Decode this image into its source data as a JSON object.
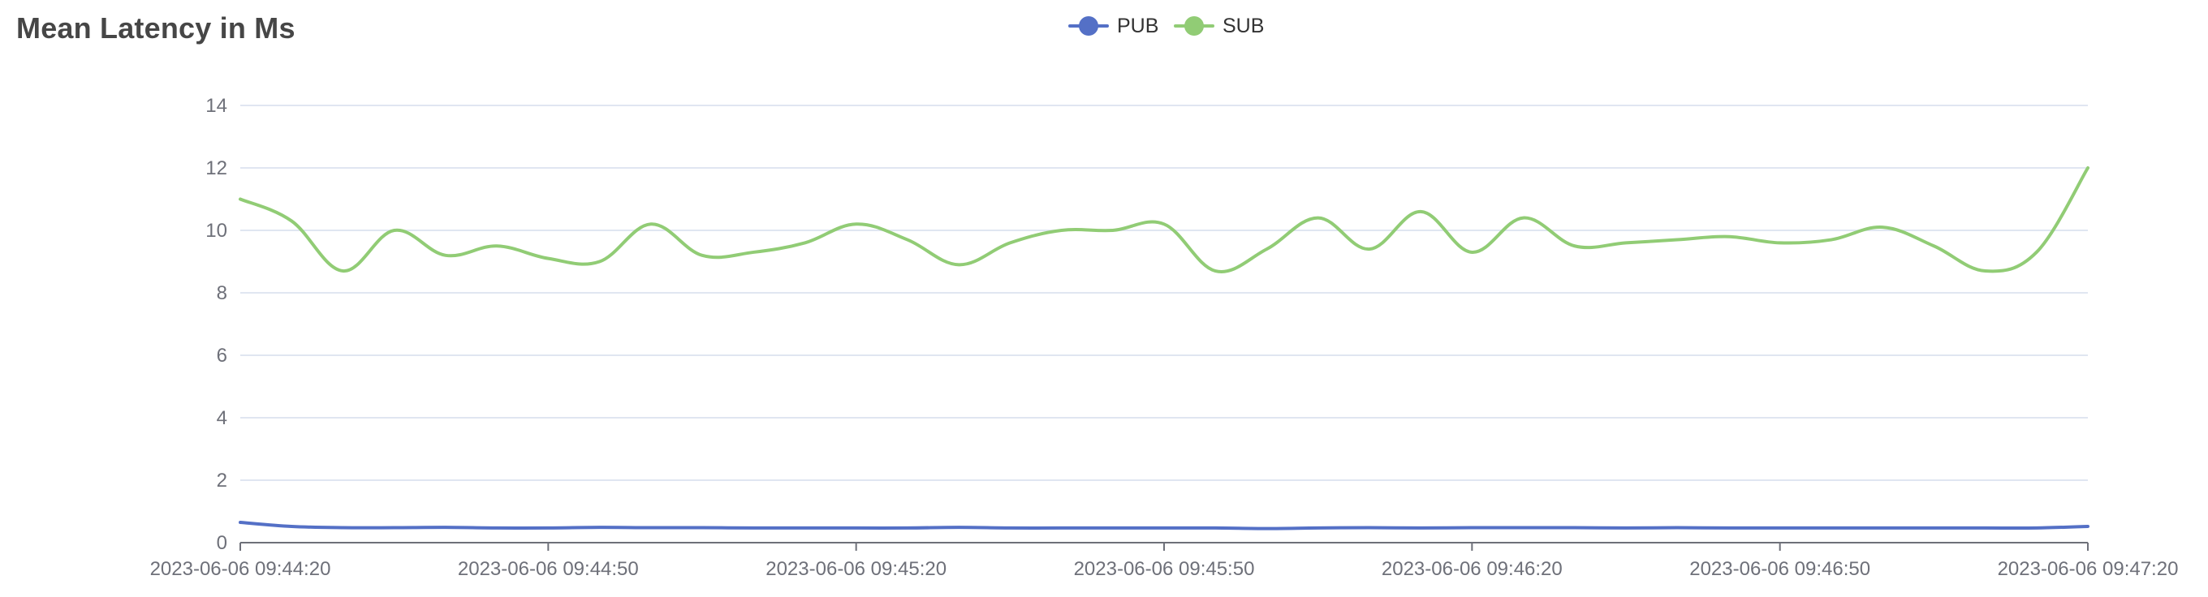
{
  "chart_data": {
    "type": "line",
    "title": "Mean Latency in Ms",
    "xlabel": "",
    "ylabel": "",
    "ylim": [
      0,
      14
    ],
    "yticks": [
      0,
      2,
      4,
      6,
      8,
      10,
      12,
      14
    ],
    "xlim": [
      "2023-06-06 09:44:20",
      "2023-06-06 09:47:20"
    ],
    "x_tick_labels": [
      "2023-06-06 09:44:20",
      "2023-06-06 09:44:50",
      "2023-06-06 09:45:20",
      "2023-06-06 09:45:50",
      "2023-06-06 09:46:20",
      "2023-06-06 09:46:50",
      "2023-06-06 09:47:20"
    ],
    "grid": true,
    "legend_position": "top-center",
    "x": [
      "2023-06-06 09:44:20",
      "2023-06-06 09:44:25",
      "2023-06-06 09:44:30",
      "2023-06-06 09:44:35",
      "2023-06-06 09:44:40",
      "2023-06-06 09:44:45",
      "2023-06-06 09:44:50",
      "2023-06-06 09:44:55",
      "2023-06-06 09:45:00",
      "2023-06-06 09:45:05",
      "2023-06-06 09:45:10",
      "2023-06-06 09:45:15",
      "2023-06-06 09:45:20",
      "2023-06-06 09:45:25",
      "2023-06-06 09:45:30",
      "2023-06-06 09:45:35",
      "2023-06-06 09:45:40",
      "2023-06-06 09:45:45",
      "2023-06-06 09:45:50",
      "2023-06-06 09:45:55",
      "2023-06-06 09:46:00",
      "2023-06-06 09:46:05",
      "2023-06-06 09:46:10",
      "2023-06-06 09:46:15",
      "2023-06-06 09:46:20",
      "2023-06-06 09:46:25",
      "2023-06-06 09:46:30",
      "2023-06-06 09:46:35",
      "2023-06-06 09:46:40",
      "2023-06-06 09:46:45",
      "2023-06-06 09:46:50",
      "2023-06-06 09:46:55",
      "2023-06-06 09:47:00",
      "2023-06-06 09:47:05",
      "2023-06-06 09:47:10",
      "2023-06-06 09:47:15",
      "2023-06-06 09:47:20"
    ],
    "series": [
      {
        "name": "PUB",
        "color": "#5470c6",
        "values": [
          0.65,
          0.52,
          0.48,
          0.48,
          0.49,
          0.47,
          0.47,
          0.49,
          0.48,
          0.48,
          0.47,
          0.47,
          0.47,
          0.47,
          0.49,
          0.47,
          0.47,
          0.47,
          0.47,
          0.47,
          0.45,
          0.47,
          0.48,
          0.47,
          0.48,
          0.48,
          0.48,
          0.47,
          0.48,
          0.47,
          0.47,
          0.47,
          0.47,
          0.47,
          0.47,
          0.47,
          0.52
        ]
      },
      {
        "name": "SUB",
        "color": "#91cc75",
        "values": [
          11.0,
          10.3,
          8.7,
          10.0,
          9.2,
          9.5,
          9.1,
          9.0,
          10.2,
          9.2,
          9.3,
          9.6,
          10.2,
          9.7,
          8.9,
          9.6,
          10.0,
          10.0,
          10.2,
          8.7,
          9.4,
          10.4,
          9.4,
          10.6,
          9.3,
          10.4,
          9.5,
          9.6,
          9.7,
          9.8,
          9.6,
          9.7,
          10.1,
          9.5,
          8.7,
          9.3,
          12.0
        ]
      }
    ]
  }
}
